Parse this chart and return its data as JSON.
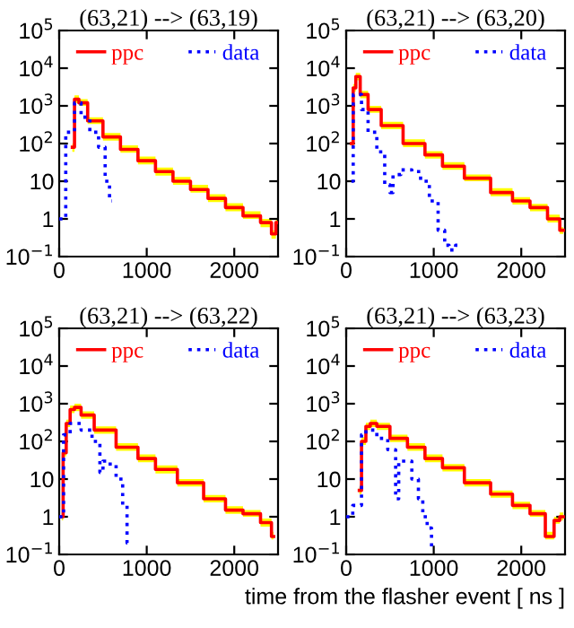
{
  "chart_data": [
    {
      "type": "step",
      "title": "(63,21) --> (63,19)",
      "xlim": [
        0,
        2500
      ],
      "xticks": [
        0,
        1000,
        2000
      ],
      "ylim": [
        0.1,
        100000
      ],
      "log": "y",
      "legend": "top",
      "grid": false,
      "yticks": [
        {
          "value": 0.1,
          "label": "10$^{−1}$"
        },
        1,
        10,
        {
          "value": 100,
          "label": "10$^{2}$"
        },
        {
          "value": 1000,
          "label": "10$^{3}$"
        },
        {
          "value": 10000,
          "label": "10$^{4}$"
        },
        {
          "value": 100000,
          "label": "10$^{5}$"
        }
      ],
      "series": [
        {
          "name": "ppc",
          "color": "#ff0000",
          "line_style": "solid",
          "x": [
            150,
            200,
            250,
            400,
            600,
            800,
            1000,
            1200,
            1400,
            1600,
            1800,
            2000,
            2200,
            2400,
            2450,
            2500
          ],
          "values": [
            80,
            1500,
            1200,
            400,
            150,
            70,
            35,
            18,
            10,
            6,
            3.5,
            2,
            1.2,
            0.8,
            0.4,
            0.8
          ],
          "lower": [
            60,
            1200,
            1000,
            330,
            120,
            57,
            28,
            14,
            8,
            5,
            2.8,
            1.6,
            1,
            0.6,
            0.3,
            0.6
          ],
          "upper": [
            100,
            1900,
            1500,
            500,
            190,
            90,
            45,
            23,
            13,
            8,
            4.5,
            2.6,
            1.6,
            1,
            0.5,
            1
          ]
        },
        {
          "name": "data",
          "color": "#0000ff",
          "line_style": "dotted",
          "x": [
            0,
            150,
            200,
            300,
            400,
            500,
            550,
            600
          ],
          "values": [
            1,
            200,
            1200,
            500,
            200,
            80,
            10,
            3
          ]
        }
      ]
    },
    {
      "type": "step",
      "title": "(63,21) --> (63,20)",
      "xlim": [
        0,
        2500
      ],
      "xticks": [
        0,
        1000,
        2000
      ],
      "ylim": [
        0.1,
        100000
      ],
      "log": "y",
      "legend": "top",
      "grid": false,
      "yticks": [
        {
          "value": 0.1,
          "label": "10$^{−1}$"
        },
        1,
        10,
        {
          "value": 100,
          "label": "10$^{2}$"
        },
        {
          "value": 1000,
          "label": "10$^{3}$"
        },
        {
          "value": 10000,
          "label": "10$^{4}$"
        },
        {
          "value": 100000,
          "label": "10$^{5}$"
        }
      ],
      "series": [
        {
          "name": "ppc",
          "color": "#ff0000",
          "line_style": "solid",
          "x": [
            60,
            100,
            120,
            200,
            300,
            500,
            800,
            1000,
            1200,
            1500,
            1800,
            2000,
            2200,
            2400,
            2480
          ],
          "values": [
            100,
            3000,
            6000,
            2000,
            800,
            300,
            100,
            50,
            25,
            12,
            5,
            3,
            2,
            1,
            0.5
          ],
          "lower": [
            80,
            2400,
            4800,
            1600,
            650,
            240,
            80,
            40,
            20,
            10,
            4,
            2.4,
            1.6,
            0.8,
            0.4
          ],
          "upper": [
            130,
            3800,
            7500,
            2500,
            1000,
            380,
            130,
            63,
            32,
            15,
            6.5,
            3.8,
            2.5,
            1.3,
            0.6
          ]
        },
        {
          "name": "data",
          "color": "#0000ff",
          "line_style": "dotted",
          "x": [
            60,
            100,
            150,
            200,
            300,
            400,
            480,
            520,
            550,
            700,
            800,
            900,
            1000,
            1100,
            1150,
            1200,
            1300
          ],
          "values": [
            10,
            2000,
            2000,
            800,
            200,
            60,
            8,
            5,
            15,
            20,
            18,
            10,
            3,
            0.5,
            0.2,
            0.15,
            0.2
          ]
        }
      ]
    },
    {
      "type": "step",
      "title": "(63,21) --> (63,22)",
      "xlim": [
        0,
        2500
      ],
      "xticks": [
        0,
        1000,
        2000
      ],
      "ylim": [
        0.1,
        100000
      ],
      "log": "y",
      "legend": "top",
      "grid": false,
      "yticks": [
        {
          "value": 0.1,
          "label": "10$^{−1}$"
        },
        1,
        10,
        {
          "value": 100,
          "label": "10$^{2}$"
        },
        {
          "value": 1000,
          "label": "10$^{3}$"
        },
        {
          "value": 10000,
          "label": "10$^{4}$"
        },
        {
          "value": 100000,
          "label": "10$^{5}$"
        }
      ],
      "series": [
        {
          "name": "ppc",
          "color": "#ff0000",
          "line_style": "solid",
          "x": [
            30,
            60,
            100,
            150,
            200,
            300,
            500,
            800,
            1000,
            1200,
            1500,
            1800,
            2000,
            2200,
            2400,
            2450
          ],
          "values": [
            1,
            50,
            300,
            700,
            800,
            500,
            200,
            70,
            35,
            18,
            8,
            3,
            1.5,
            1.2,
            0.7,
            0.3
          ],
          "lower": [
            0.8,
            40,
            240,
            560,
            640,
            400,
            160,
            56,
            28,
            14,
            6.4,
            2.4,
            1.2,
            1,
            0.55,
            0.25
          ],
          "upper": [
            1.3,
            63,
            380,
            900,
            1000,
            630,
            250,
            90,
            45,
            23,
            10,
            3.8,
            1.9,
            1.5,
            0.9,
            0.4
          ]
        },
        {
          "name": "data",
          "color": "#0000ff",
          "line_style": "dotted",
          "x": [
            0,
            100,
            150,
            200,
            300,
            450,
            480,
            520,
            600,
            700,
            750,
            800
          ],
          "values": [
            1,
            150,
            300,
            300,
            200,
            100,
            15,
            30,
            25,
            10,
            2,
            0.2
          ]
        }
      ]
    },
    {
      "type": "step",
      "title": "(63,21) --> (63,23)",
      "xlabel": "time from the flasher event [ ns ]",
      "xlim": [
        0,
        2500
      ],
      "xticks": [
        0,
        1000,
        2000
      ],
      "ylim": [
        0.1,
        100000
      ],
      "log": "y",
      "legend": "top",
      "grid": false,
      "yticks": [
        {
          "value": 0.1,
          "label": "10$^{−1}$"
        },
        1,
        10,
        {
          "value": 100,
          "label": "10$^{2}$"
        },
        {
          "value": 1000,
          "label": "10$^{3}$"
        },
        {
          "value": 10000,
          "label": "10$^{4}$"
        },
        {
          "value": 100000,
          "label": "10$^{5}$"
        }
      ],
      "series": [
        {
          "name": "ppc",
          "color": "#ff0000",
          "line_style": "solid",
          "x": [
            150,
            200,
            250,
            300,
            400,
            600,
            800,
            1000,
            1200,
            1500,
            1800,
            2000,
            2200,
            2350,
            2400,
            2480
          ],
          "values": [
            5,
            100,
            250,
            300,
            250,
            120,
            70,
            35,
            20,
            8,
            4,
            2,
            1.2,
            0.3,
            0.8,
            1
          ],
          "lower": [
            4,
            80,
            200,
            240,
            200,
            96,
            56,
            28,
            16,
            6.4,
            3.2,
            1.6,
            1,
            0.25,
            0.65,
            0.8
          ],
          "upper": [
            6.3,
            130,
            310,
            380,
            310,
            150,
            90,
            45,
            25,
            10,
            5,
            2.5,
            1.5,
            0.4,
            1,
            1.3
          ]
        },
        {
          "name": "data",
          "color": "#0000ff",
          "line_style": "dotted",
          "x": [
            0,
            150,
            200,
            250,
            300,
            400,
            550,
            580,
            620,
            700,
            800,
            850,
            900,
            950,
            1000
          ],
          "values": [
            1,
            2,
            150,
            200,
            200,
            120,
            60,
            3,
            30,
            30,
            10,
            3,
            1,
            0.5,
            0.15
          ]
        }
      ]
    }
  ]
}
